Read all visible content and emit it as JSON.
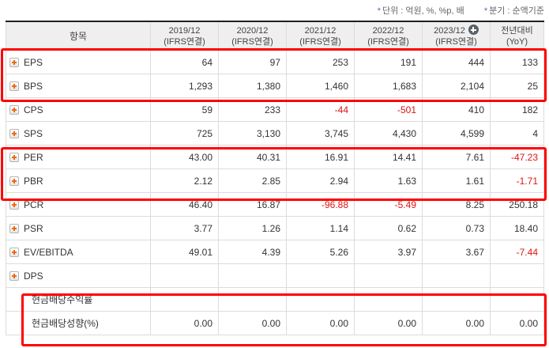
{
  "colors": {
    "negative": "#dd1414",
    "highlight_box": "#ff0000",
    "expand_plus_orange": "#f1690d",
    "note_star_blue": "#4d6cb0"
  },
  "notes": [
    {
      "star": "*",
      "text": "단위 : 억원, %, %p, 배"
    },
    {
      "star": "*",
      "text": "분기 : 순액기준"
    }
  ],
  "table": {
    "item_header": "항목",
    "columns": [
      {
        "year": "2019/12",
        "sub": "(IFRS연결)",
        "add_button": false
      },
      {
        "year": "2020/12",
        "sub": "(IFRS연결)",
        "add_button": false
      },
      {
        "year": "2021/12",
        "sub": "(IFRS연결)",
        "add_button": false
      },
      {
        "year": "2022/12",
        "sub": "(IFRS연결)",
        "add_button": false
      },
      {
        "year": "2023/12",
        "sub": "(IFRS연결)",
        "add_button": true
      },
      {
        "year": "전년대비",
        "sub": "(YoY)",
        "add_button": false
      }
    ],
    "rows": [
      {
        "label": "EPS",
        "expandable": true,
        "values": [
          "64",
          "97",
          "253",
          "191",
          "444",
          "133"
        ]
      },
      {
        "label": "BPS",
        "expandable": true,
        "values": [
          "1,293",
          "1,380",
          "1,460",
          "1,683",
          "2,104",
          "25"
        ]
      },
      {
        "label": "CPS",
        "expandable": true,
        "values": [
          "59",
          "233",
          "-44",
          "-501",
          "410",
          "182"
        ]
      },
      {
        "label": "SPS",
        "expandable": true,
        "values": [
          "725",
          "3,130",
          "3,745",
          "4,430",
          "4,599",
          "4"
        ]
      },
      {
        "label": "PER",
        "expandable": true,
        "values": [
          "43.00",
          "40.31",
          "16.91",
          "14.41",
          "7.61",
          "-47.23"
        ]
      },
      {
        "label": "PBR",
        "expandable": true,
        "values": [
          "2.12",
          "2.85",
          "2.94",
          "1.63",
          "1.61",
          "-1.71"
        ]
      },
      {
        "label": "PCR",
        "expandable": true,
        "values": [
          "46.40",
          "16.87",
          "-96.88",
          "-5.49",
          "8.25",
          "250.18"
        ]
      },
      {
        "label": "PSR",
        "expandable": true,
        "values": [
          "3.77",
          "1.26",
          "1.14",
          "0.62",
          "0.73",
          "18.40"
        ]
      },
      {
        "label": "EV/EBITDA",
        "expandable": true,
        "values": [
          "49.01",
          "4.39",
          "5.26",
          "3.97",
          "3.67",
          "-7.44"
        ]
      },
      {
        "label": "DPS",
        "expandable": true,
        "values": [
          "",
          "",
          "",
          "",
          "",
          ""
        ]
      },
      {
        "label": "현금배당수익률",
        "expandable": false,
        "values": [
          "",
          "",
          "",
          "",
          "",
          ""
        ]
      },
      {
        "label": "현금배당성향(%)",
        "expandable": false,
        "values": [
          "0.00",
          "0.00",
          "0.00",
          "0.00",
          "0.00",
          "0.00"
        ]
      }
    ]
  }
}
